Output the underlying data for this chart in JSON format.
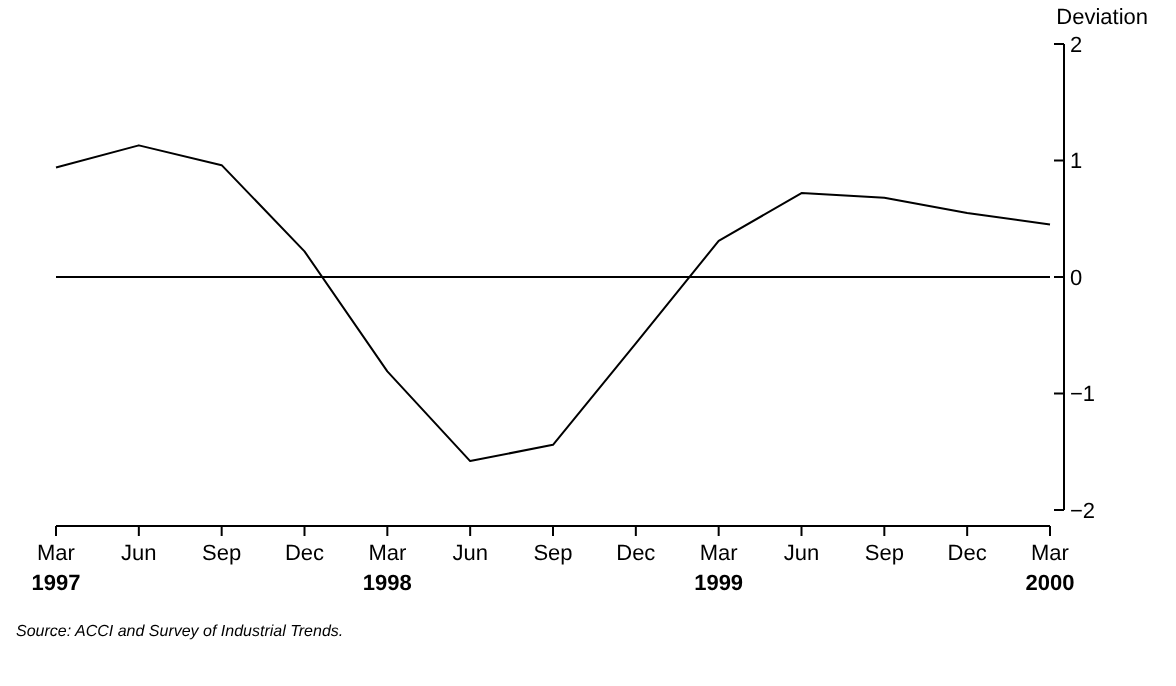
{
  "chart_data": {
    "type": "line",
    "ylabel": "Deviation",
    "categories": [
      "Mar\n1997",
      "Jun",
      "Sep",
      "Dec",
      "Mar\n1998",
      "Jun",
      "Sep",
      "Dec",
      "Mar\n1999",
      "Jun",
      "Sep",
      "Dec",
      "Mar\n2000"
    ],
    "series": [
      {
        "color": "#000000",
        "values": [
          0.94,
          1.13,
          0.96,
          0.22,
          -0.81,
          -1.58,
          -1.44,
          -0.57,
          0.31,
          0.72,
          0.68,
          0.55,
          0.45
        ]
      }
    ],
    "ylim": [
      -2,
      2
    ],
    "yticks": [
      {
        "value": 2,
        "label": "2"
      },
      {
        "value": 1,
        "label": "1"
      },
      {
        "value": 0,
        "label": "0"
      },
      {
        "value": -1,
        "label": "−1"
      },
      {
        "value": -2,
        "label": "−2"
      }
    ],
    "ref_lines": [
      {
        "axis": "y",
        "value": 0,
        "color": "#000000"
      }
    ],
    "grid": false,
    "marker": "none",
    "line_style": "solid",
    "annotations": [
      "Source: ACCI and Survey of Industrial Trends."
    ]
  }
}
